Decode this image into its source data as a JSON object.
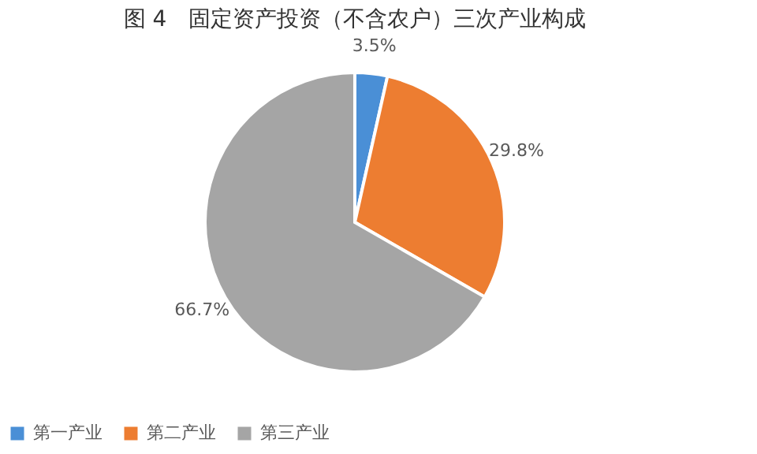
{
  "chart_data": {
    "type": "pie",
    "title": "图 4　固定资产投资（不含农户）三次产业构成",
    "categories": [
      "第一产业",
      "第二产业",
      "第三产业"
    ],
    "values": [
      3.5,
      29.8,
      66.7
    ],
    "value_labels": [
      "3.5%",
      "29.8%",
      "66.7%"
    ],
    "colors": [
      "#4a8fd6",
      "#ed7d31",
      "#a5a5a5"
    ],
    "legend": "bottom"
  }
}
